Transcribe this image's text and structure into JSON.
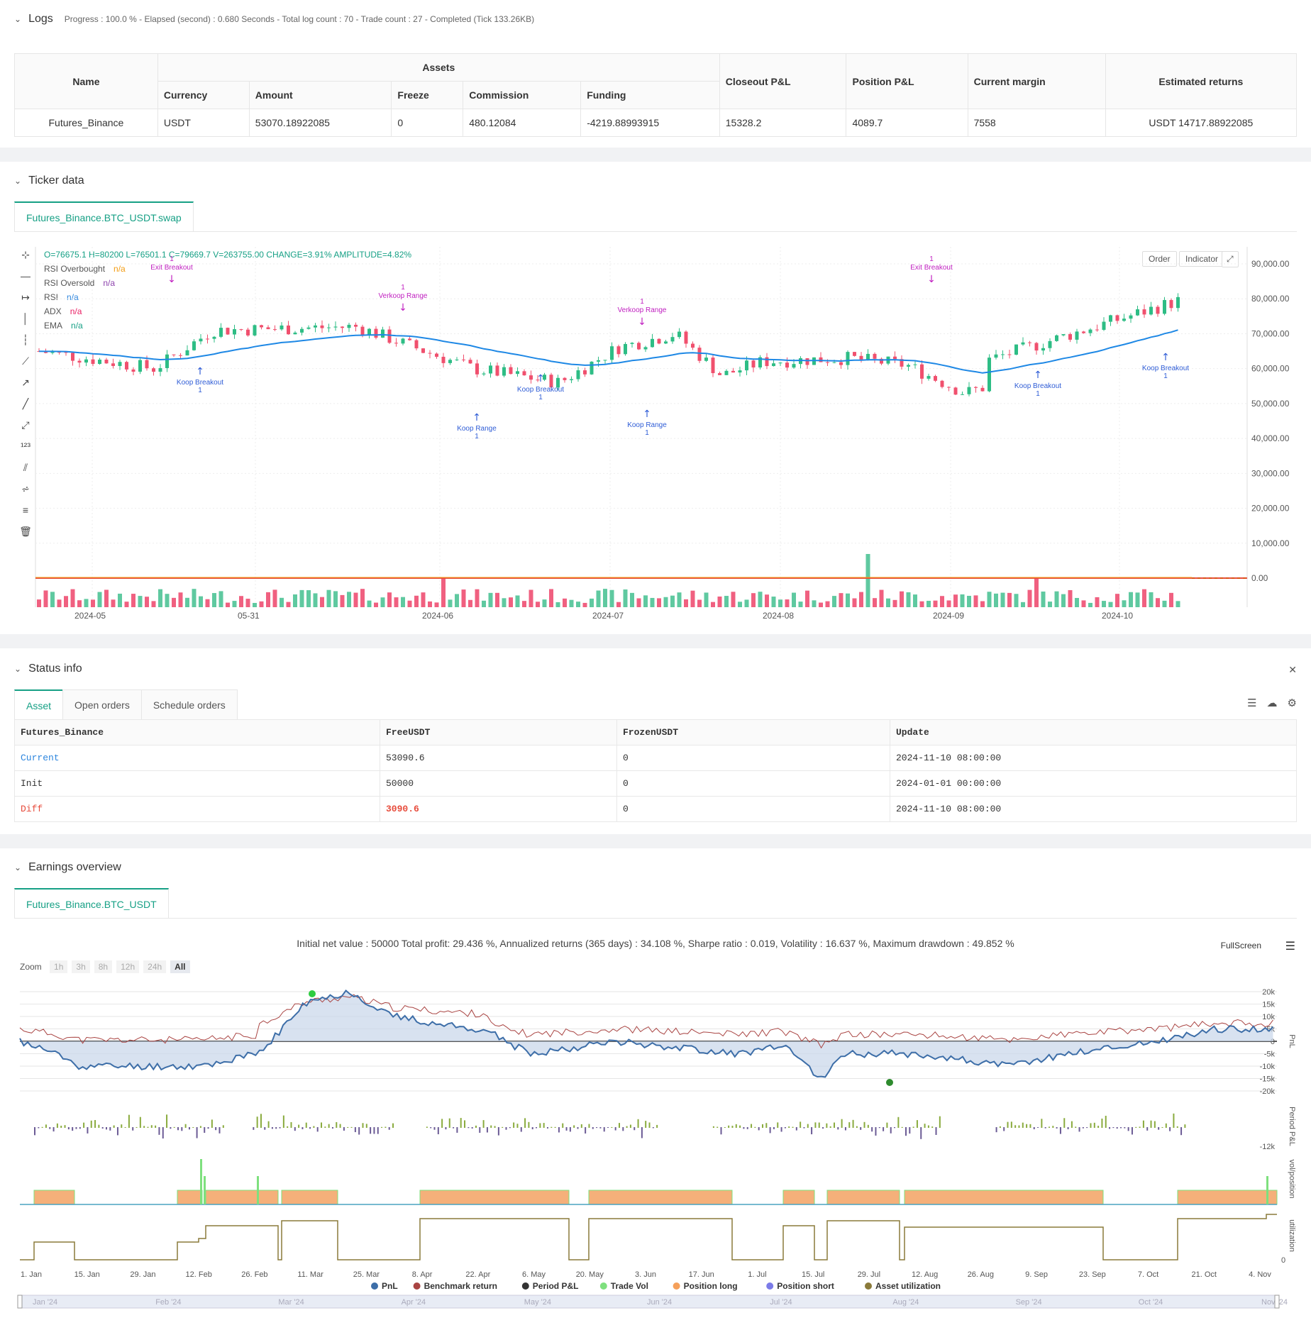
{
  "logs": {
    "title": "Logs",
    "progress": "Progress : 100.0 % - Elapsed (second) : 0.680  Seconds - Total log count : 70 - Trade count : 27 - Completed (Tick 133.26KB)",
    "headers": {
      "name": "Name",
      "assets": "Assets",
      "currency": "Currency",
      "amount": "Amount",
      "freeze": "Freeze",
      "commission": "Commission",
      "funding": "Funding",
      "closeout": "Closeout P&L",
      "position": "Position P&L",
      "margin": "Current margin",
      "returns": "Estimated returns"
    },
    "row": {
      "name": "Futures_Binance",
      "currency": "USDT",
      "amount": "53070.18922085",
      "freeze": "0",
      "commission": "480.12084",
      "funding": "-4219.88993915",
      "closeout": "15328.2",
      "position": "4089.7",
      "margin": "7558",
      "returns": "USDT 14717.88922085"
    }
  },
  "ticker": {
    "title": "Ticker data",
    "tab": "Futures_Binance.BTC_USDT.swap",
    "ohlc": "O=76675.1  H=80200  L=76501.1  C=79669.7  V=263755.00  CHANGE=3.91%  AMPLITUDE=4.82%",
    "legend": [
      {
        "name": "RSI Overbought",
        "value": "n/a",
        "color": "#f39c12"
      },
      {
        "name": "RSI Oversold",
        "value": "n/a",
        "color": "#8e44ad"
      },
      {
        "name": "RSI",
        "value": "n/a",
        "color": "#2e86de"
      },
      {
        "name": "ADX",
        "value": "n/a",
        "color": "#e91e63"
      },
      {
        "name": "EMA",
        "value": "n/a",
        "color": "#16a085"
      }
    ],
    "order_btn": "Order",
    "indicator_btn": "Indicator",
    "yticks": [
      "90,000.00",
      "80,000.00",
      "70,000.00",
      "60,000.00",
      "50,000.00",
      "40,000.00",
      "30,000.00",
      "20,000.00",
      "10,000.00",
      "0.00"
    ],
    "xticks": [
      "2024-05",
      "05-31",
      "2024-06",
      "2024-07",
      "2024-08",
      "2024-09",
      "2024-10"
    ],
    "annotations": [
      {
        "text": "Exit Breakout",
        "count": "1",
        "kind": "exit"
      },
      {
        "text": "Koop Breakout",
        "count": "1",
        "kind": "buy"
      },
      {
        "text": "Verkoop Range",
        "count": "1",
        "kind": "exit"
      },
      {
        "text": "Koop Range",
        "count": "1",
        "kind": "buy"
      },
      {
        "text": "Koop Breakout",
        "count": "1",
        "kind": "buy"
      },
      {
        "text": "Verkoop Range",
        "count": "1",
        "kind": "exit"
      },
      {
        "text": "Koop Range",
        "count": "1",
        "kind": "buy"
      },
      {
        "text": "Exit Breakout",
        "count": "1",
        "kind": "exit"
      },
      {
        "text": "Koop Breakout",
        "count": "1",
        "kind": "buy"
      },
      {
        "text": "Koop Breakout",
        "count": "1",
        "kind": "buy"
      }
    ]
  },
  "status": {
    "title": "Status info",
    "tabs": [
      "Asset",
      "Open orders",
      "Schedule orders"
    ],
    "headers": [
      "Futures_Binance",
      "FreeUSDT",
      "FrozenUSDT",
      "Update"
    ],
    "rows": [
      {
        "label": "Current",
        "free": "53090.6",
        "frozen": "0",
        "update": "2024-11-10 08:00:00",
        "color": "#2e86de"
      },
      {
        "label": "Init",
        "free": "50000",
        "frozen": "0",
        "update": "2024-01-01 00:00:00",
        "color": "#333333"
      },
      {
        "label": "Diff",
        "free": "3090.6",
        "frozen": "0",
        "update": "2024-11-10 08:00:00",
        "color": "#e74c3c"
      }
    ]
  },
  "earnings": {
    "title": "Earnings overview",
    "tab": "Futures_Binance.BTC_USDT",
    "summary": "Initial net value : 50000  Total profit: 29.436 %, Annualized returns (365 days) : 34.108 %, Sharpe ratio : 0.019, Volatility : 16.637 %, Maximum drawdown : 49.852 %",
    "fullscreen": "FullScreen",
    "zoom_label": "Zoom",
    "zoom": [
      "1h",
      "3h",
      "8h",
      "12h",
      "24h",
      "All"
    ],
    "pnl_ticks": [
      "20k",
      "15k",
      "10k",
      "5k",
      "0",
      "-5k",
      "-10k",
      "-15k",
      "-20k"
    ],
    "period_tick": "-12k",
    "axis_labels": [
      "PnL",
      "Period P&L",
      "vol/position",
      "utilization"
    ],
    "xticks": [
      "1. Jan",
      "15. Jan",
      "29. Jan",
      "12. Feb",
      "26. Feb",
      "11. Mar",
      "25. Mar",
      "8. Apr",
      "22. Apr",
      "6. May",
      "20. May",
      "3. Jun",
      "17. Jun",
      "1. Jul",
      "15. Jul",
      "29. Jul",
      "12. Aug",
      "26. Aug",
      "9. Sep",
      "23. Sep",
      "7. Oct",
      "21. Oct",
      "4. Nov"
    ],
    "navigator": [
      "Jan '24",
      "Feb '24",
      "Mar '24",
      "Apr '24",
      "May '24",
      "Jun '24",
      "Jul '24",
      "Aug '24",
      "Sep '24",
      "Oct '24",
      "Nov '24"
    ],
    "legend": [
      {
        "name": "PnL",
        "color": "#3d6ea8"
      },
      {
        "name": "Benchmark return",
        "color": "#a94442"
      },
      {
        "name": "Period P&L",
        "color": "#333333"
      },
      {
        "name": "Trade Vol",
        "color": "#7ee07e"
      },
      {
        "name": "Position long",
        "color": "#f5a05a"
      },
      {
        "name": "Position short",
        "color": "#7b7be8"
      },
      {
        "name": "Asset utilization",
        "color": "#8a7a3a"
      }
    ]
  }
}
